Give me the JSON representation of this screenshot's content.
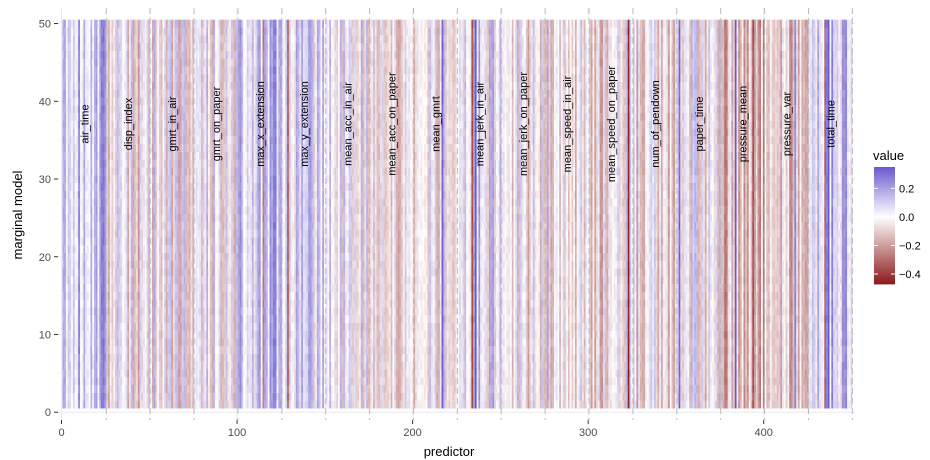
{
  "chart_data": {
    "type": "heatmap",
    "xlabel": "predictor",
    "ylabel": "marginal model",
    "xlim": [
      -2,
      452
    ],
    "ylim": [
      -1,
      52
    ],
    "x_ticks": [
      0,
      100,
      200,
      300,
      400
    ],
    "y_ticks": [
      0,
      10,
      20,
      30,
      40,
      50
    ],
    "grid": true,
    "rows": 50,
    "columns": 450,
    "group_boundaries": [
      25.5,
      50.5,
      75.5,
      100.5,
      125.5,
      150.5,
      175.5,
      200.5,
      225.5,
      250.5,
      275.5,
      300.5,
      325.5,
      350.5,
      375.5,
      400.5,
      425.5,
      450.5
    ],
    "groups": [
      {
        "label": "air_time",
        "start": 1,
        "end": 25,
        "bias": 0.12
      },
      {
        "label": "disp_index",
        "start": 26,
        "end": 50,
        "bias": -0.02
      },
      {
        "label": "gmrt_in_air",
        "start": 51,
        "end": 75,
        "bias": -0.02
      },
      {
        "label": "gmrt_on_paper",
        "start": 76,
        "end": 100,
        "bias": 0.0
      },
      {
        "label": "max_x_extension",
        "start": 101,
        "end": 125,
        "bias": 0.12
      },
      {
        "label": "max_y_extension",
        "start": 126,
        "end": 150,
        "bias": 0.06
      },
      {
        "label": "mean_acc_in_air",
        "start": 151,
        "end": 175,
        "bias": 0.03
      },
      {
        "label": "mean_acc_on_paper",
        "start": 176,
        "end": 200,
        "bias": -0.03
      },
      {
        "label": "mean_gmrt",
        "start": 201,
        "end": 225,
        "bias": 0.0
      },
      {
        "label": "mean_jerk_in_air",
        "start": 226,
        "end": 250,
        "bias": 0.05
      },
      {
        "label": "mean_jerk_on_paper",
        "start": 251,
        "end": 275,
        "bias": -0.04
      },
      {
        "label": "mean_speed_in_air",
        "start": 276,
        "end": 300,
        "bias": -0.03
      },
      {
        "label": "mean_speed_on_paper",
        "start": 301,
        "end": 325,
        "bias": -0.05
      },
      {
        "label": "num_of_pendown",
        "start": 326,
        "end": 350,
        "bias": -0.05
      },
      {
        "label": "paper_time",
        "start": 351,
        "end": 375,
        "bias": 0.0
      },
      {
        "label": "pressure_mean",
        "start": 376,
        "end": 400,
        "bias": -0.12
      },
      {
        "label": "pressure_var",
        "start": 401,
        "end": 425,
        "bias": -0.08
      },
      {
        "label": "total_time",
        "start": 426,
        "end": 450,
        "bias": 0.1
      }
    ],
    "legend": {
      "title": "value",
      "position": "right",
      "range": [
        -0.47,
        0.35
      ],
      "ticks": [
        0.2,
        0.0,
        -0.2,
        -0.4
      ],
      "tick_labels": [
        "0.2",
        "0.0",
        "−0.2",
        "−0.4"
      ],
      "low_color": "#8b1a1a",
      "mid_color": "#ffffff",
      "high_color": "#6a5acd"
    }
  }
}
